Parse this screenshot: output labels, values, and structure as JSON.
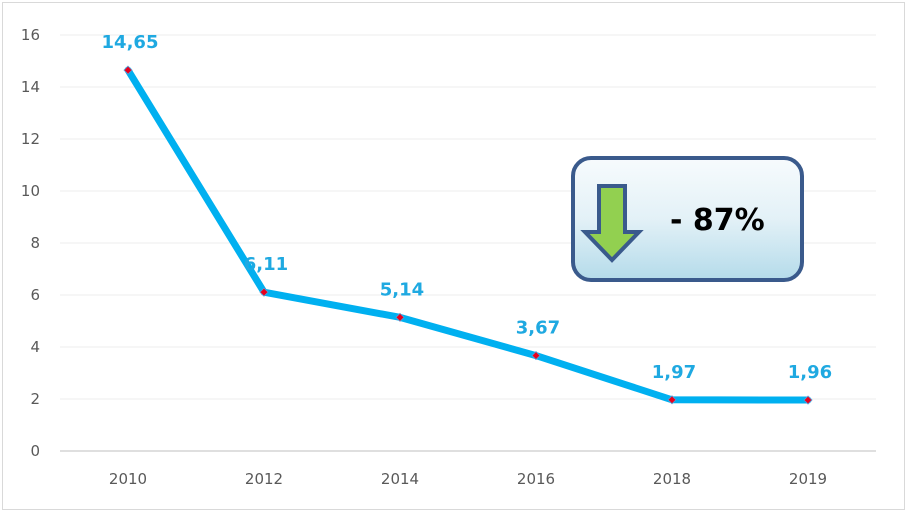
{
  "chart_data": {
    "type": "line",
    "title": "",
    "xlabel": "",
    "ylabel": "",
    "categories": [
      "2010",
      "2012",
      "2014",
      "2016",
      "2018",
      "2019"
    ],
    "series": [
      {
        "name": "",
        "values": [
          14.65,
          6.11,
          5.14,
          3.67,
          1.97,
          1.96
        ],
        "labels": [
          "14,65",
          "6,11",
          "5,14",
          "3,67",
          "1,97",
          "1,96"
        ],
        "color": "#00b0f0",
        "marker_color": "#e8001c"
      }
    ],
    "ylim": [
      0,
      16
    ],
    "yticks": [
      0,
      2,
      4,
      6,
      8,
      10,
      12,
      14,
      16
    ],
    "grid": true,
    "legend": "none",
    "annotation": {
      "text": "- 87%",
      "icon": "arrow-down-icon",
      "arrow_color": "#92d050",
      "border_color": "#3a5a8c"
    }
  }
}
